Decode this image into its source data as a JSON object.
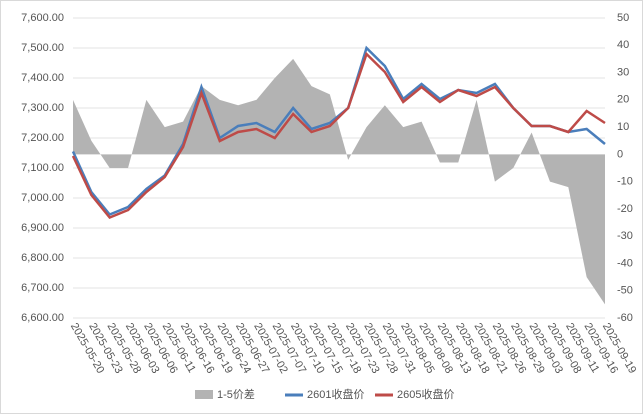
{
  "chart_data": {
    "type": "line",
    "categories": [
      "2025-05-20",
      "2025-05-23",
      "2025-05-28",
      "2025-06-03",
      "2025-06-06",
      "2025-06-11",
      "2025-06-16",
      "2025-06-19",
      "2025-06-24",
      "2025-06-27",
      "2025-07-02",
      "2025-07-07",
      "2025-07-10",
      "2025-07-15",
      "2025-07-18",
      "2025-07-23",
      "2025-07-28",
      "2025-07-31",
      "2025-08-05",
      "2025-08-08",
      "2025-08-13",
      "2025-08-18",
      "2025-08-21",
      "2025-08-26",
      "2025-08-29",
      "2025-09-03",
      "2025-09-08",
      "2025-09-11",
      "2025-09-16",
      "2025-09-19"
    ],
    "series": [
      {
        "name": "1-5价差",
        "color": "#b3b3b3",
        "kind": "area",
        "axis": "y2",
        "values": [
          20,
          5,
          -5,
          -5,
          20,
          10,
          12,
          25,
          20,
          18,
          20,
          28,
          35,
          25,
          22,
          -2,
          10,
          18,
          10,
          12,
          -3,
          -3,
          20,
          -10,
          -5,
          8,
          -10,
          -12,
          -45,
          -55
        ]
      },
      {
        "name": "2601收盘价",
        "color": "#4a7ebb",
        "kind": "line",
        "values": [
          7155,
          7020,
          6945,
          6970,
          7030,
          7075,
          7180,
          7370,
          7200,
          7240,
          7250,
          7220,
          7300,
          7230,
          7250,
          7300,
          7500,
          7440,
          7330,
          7380,
          7330,
          7360,
          7350,
          7380,
          7300,
          7240,
          7240,
          7220,
          7230,
          7180
        ]
      },
      {
        "name": "2605收盘价",
        "color": "#be4b48",
        "kind": "line",
        "values": [
          7140,
          7010,
          6935,
          6960,
          7020,
          7070,
          7170,
          7350,
          7190,
          7220,
          7230,
          7200,
          7280,
          7220,
          7240,
          7300,
          7480,
          7420,
          7320,
          7370,
          7320,
          7360,
          7340,
          7370,
          7300,
          7240,
          7240,
          7220,
          7290,
          7250
        ]
      }
    ],
    "ylim": [
      6600,
      7600
    ],
    "yticks": [
      {
        "value": 6600,
        "label": "6,600.00"
      },
      {
        "value": 6700,
        "label": "6,700.00"
      },
      {
        "value": 6800,
        "label": "6,800.00"
      },
      {
        "value": 6900,
        "label": "6,900.00"
      },
      {
        "value": 7000,
        "label": "7,000.00"
      },
      {
        "value": 7100,
        "label": "7,100.00"
      },
      {
        "value": 7200,
        "label": "7,200.00"
      },
      {
        "value": 7300,
        "label": "7,300.00"
      },
      {
        "value": 7400,
        "label": "7,400.00"
      },
      {
        "value": 7500,
        "label": "7,500.00"
      },
      {
        "value": 7600,
        "label": "7,600.00"
      }
    ],
    "y2lim": [
      -60,
      50
    ],
    "y2ticks": [
      -60,
      -50,
      -40,
      -30,
      -20,
      -10,
      0,
      10,
      20,
      30,
      40,
      50
    ],
    "grid": true,
    "legend": "bottom"
  }
}
